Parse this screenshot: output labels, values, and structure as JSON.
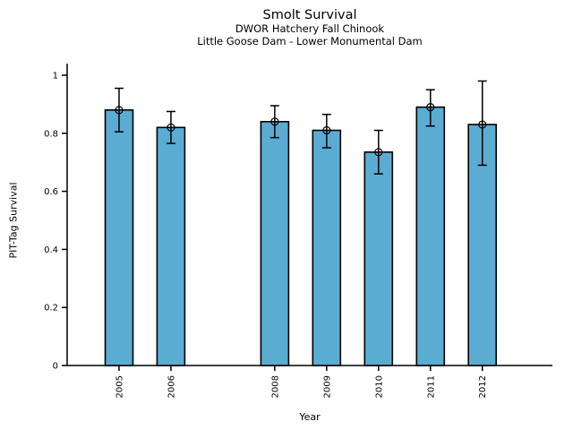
{
  "chart_data": {
    "type": "bar",
    "title": "Smolt Survival",
    "subtitle_1": "DWOR Hatchery Fall Chinook",
    "subtitle_2": "Little Goose Dam - Lower Monumental Dam",
    "xlabel": "Year",
    "ylabel": "PIT-Tag Survival",
    "categories": [
      "2005",
      "2006",
      "2008",
      "2009",
      "2010",
      "2011",
      "2012"
    ],
    "x_numeric": [
      2005,
      2006,
      2008,
      2009,
      2010,
      2011,
      2012
    ],
    "values": [
      0.88,
      0.82,
      0.84,
      0.81,
      0.735,
      0.89,
      0.83
    ],
    "error_low": [
      0.805,
      0.765,
      0.785,
      0.75,
      0.66,
      0.825,
      0.69
    ],
    "error_high": [
      0.955,
      0.875,
      0.895,
      0.865,
      0.81,
      0.95,
      0.98
    ],
    "yticks": [
      0,
      0.2,
      0.4,
      0.6,
      0.8,
      1
    ],
    "ytick_labels": [
      "0",
      "0.2",
      "0.4",
      "0.6",
      "0.8",
      "1"
    ],
    "ylim": [
      0,
      1.04
    ],
    "xlim": [
      2004,
      2013.35
    ],
    "bar_width_years": 0.535,
    "grid": false,
    "legend": "none",
    "marker": "open-circle",
    "x_tick_rotation_deg": 90,
    "colors": {
      "bar_fill": "#5BACD3",
      "bar_edge": "#000000",
      "error_bar": "#000000",
      "axis": "#000000",
      "text": "#000000",
      "background": "#FFFFFF"
    }
  }
}
